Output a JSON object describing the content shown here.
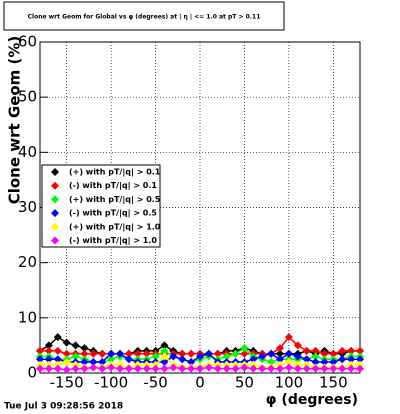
{
  "chart_data": {
    "type": "line",
    "title": "Clone wrt Geom for Global vs φ (degrees) at | η | <= 1.0 at pT > 0.11",
    "x_label": "φ (degrees)",
    "y_label": "Clone wrt Geom (%)",
    "footer": "Tue Jul  3 09:28:56 2018",
    "x": [
      -180,
      -170,
      -160,
      -150,
      -140,
      -130,
      -120,
      -110,
      -100,
      -90,
      -80,
      -70,
      -60,
      -50,
      -40,
      -30,
      -20,
      -10,
      0,
      10,
      20,
      30,
      40,
      50,
      60,
      70,
      80,
      90,
      100,
      110,
      120,
      130,
      140,
      150,
      160,
      170,
      180
    ],
    "series": [
      {
        "name": "(+) with pT/|q| > 0.1",
        "color": "#000000",
        "values": [
          4,
          5,
          6.5,
          5.5,
          5,
          4.5,
          4,
          3.5,
          3.5,
          3.5,
          3.5,
          4,
          4,
          4,
          5,
          4,
          3.5,
          3.5,
          3.5,
          3.5,
          3.5,
          4,
          4,
          4.5,
          4,
          3.5,
          3.5,
          3.5,
          3.5,
          3.5,
          4,
          3.5,
          4,
          3.5,
          3.5,
          4,
          4
        ]
      },
      {
        "name": "(-) with pT/|q| > 0.1",
        "color": "#ff0000",
        "values": [
          4,
          4,
          4,
          3.5,
          3.5,
          3.5,
          3.5,
          3.5,
          3.5,
          3.5,
          3.5,
          3.5,
          3.5,
          3.5,
          3.5,
          3.5,
          3.5,
          3.5,
          3.5,
          3.5,
          3.5,
          3.5,
          3.5,
          3.5,
          3.5,
          3.5,
          3.5,
          4.5,
          6.5,
          5,
          4,
          4,
          3.5,
          3.5,
          4,
          4,
          4
        ]
      },
      {
        "name": "(+) with pT/|q| > 0.5",
        "color": "#00ff00",
        "values": [
          3,
          3,
          2.5,
          2.5,
          3,
          2.5,
          2,
          2,
          2.5,
          3,
          2.5,
          2.5,
          2.5,
          3,
          4,
          3,
          2.5,
          2,
          2.5,
          3,
          2.5,
          3,
          3.5,
          4.5,
          3,
          2.5,
          2,
          2.5,
          2.5,
          2.5,
          2.5,
          3,
          2.5,
          2.5,
          2.5,
          3,
          3
        ]
      },
      {
        "name": "(-) with pT/|q| > 0.5",
        "color": "#0000ff",
        "values": [
          2.5,
          2.5,
          2.5,
          2,
          2,
          2,
          2,
          2,
          3.5,
          3.5,
          2.5,
          2,
          2,
          2,
          2,
          3,
          2.5,
          2,
          3,
          3.5,
          2,
          2,
          2,
          2,
          2.5,
          3,
          3.5,
          2.5,
          3.5,
          3,
          2.5,
          2,
          2,
          2,
          2.5,
          2.5,
          2.5
        ]
      },
      {
        "name": "(+) with pT/|q| > 1.0",
        "color": "#ffff00",
        "values": [
          1.5,
          1.5,
          1.5,
          2,
          1.5,
          1,
          1,
          1,
          1.5,
          1.5,
          1,
          1.5,
          1.5,
          1.5,
          3,
          1.5,
          1,
          1,
          1,
          1.5,
          1.5,
          1.5,
          1.5,
          1.5,
          1.5,
          1,
          1,
          1.5,
          2,
          1.5,
          1.5,
          1,
          1,
          1,
          1,
          1.5,
          1.5
        ]
      },
      {
        "name": "(-) with pT/|q| > 1.0",
        "color": "#ff00ff",
        "values": [
          0.8,
          0.8,
          0.8,
          0.6,
          0.8,
          0.8,
          1,
          0.8,
          1,
          0.8,
          0.8,
          0.8,
          0.8,
          0.8,
          0.8,
          1,
          0.8,
          0.8,
          0.8,
          1,
          0.8,
          0.8,
          0.8,
          1,
          0.8,
          0.8,
          0.8,
          0.8,
          1,
          0.8,
          0.8,
          0.8,
          0.8,
          0.8,
          0.8,
          0.8,
          0.8
        ]
      }
    ],
    "xlim": [
      -180,
      180
    ],
    "ylim": [
      0,
      60
    ],
    "xticks": [
      -150,
      -100,
      -50,
      0,
      50,
      100,
      150
    ],
    "yticks": [
      0,
      10,
      20,
      30,
      40,
      50,
      60
    ],
    "grid": true
  }
}
